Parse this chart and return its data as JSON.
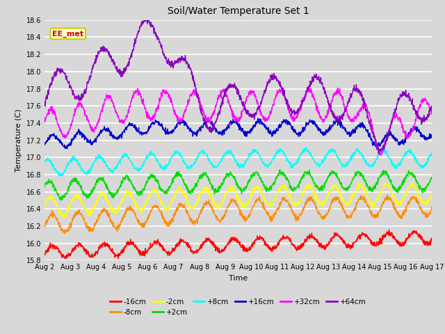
{
  "title": "Soil/Water Temperature Set 1",
  "xlabel": "Time",
  "ylabel": "Temperature (C)",
  "ylim": [
    15.8,
    18.6
  ],
  "xtick_labels": [
    "Aug 2",
    "Aug 3",
    "Aug 4",
    "Aug 5",
    "Aug 6",
    "Aug 7",
    "Aug 8",
    "Aug 9",
    "Aug 10",
    "Aug 11",
    "Aug 12",
    "Aug 13",
    "Aug 14",
    "Aug 15",
    "Aug 16",
    "Aug 17"
  ],
  "ytick_vals": [
    15.8,
    16.0,
    16.2,
    16.4,
    16.6,
    16.8,
    17.0,
    17.2,
    17.4,
    17.6,
    17.8,
    18.0,
    18.2,
    18.4,
    18.6
  ],
  "series": [
    {
      "label": "-16cm",
      "color": "#ff0000"
    },
    {
      "label": "-8cm",
      "color": "#ff8c00"
    },
    {
      "label": "-2cm",
      "color": "#ffff00"
    },
    {
      "label": "+2cm",
      "color": "#00dd00"
    },
    {
      "label": "+8cm",
      "color": "#00ffff"
    },
    {
      "label": "+16cm",
      "color": "#0000cc"
    },
    {
      "label": "+32cm",
      "color": "#ff00ff"
    },
    {
      "label": "+64cm",
      "color": "#8800bb"
    }
  ],
  "annotation": "EE_met",
  "bg_color": "#d8d8d8",
  "plot_bg_color": "#d8d8d8",
  "title_fontsize": 10,
  "axis_fontsize": 8,
  "tick_fontsize": 7,
  "linewidth": 1.0
}
